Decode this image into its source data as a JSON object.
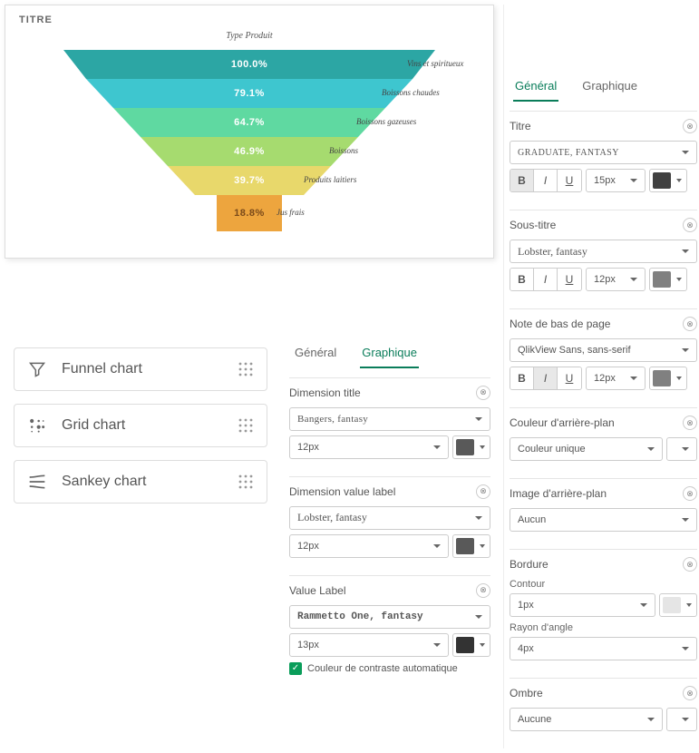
{
  "chart": {
    "title": "TITRE",
    "subtitle": "Type Produit",
    "segments": [
      {
        "value": "100.0%",
        "label": "Vins et spiritueux",
        "color": "#2ca6a4",
        "tw": 410,
        "bw": 360,
        "h": 32,
        "labelX": 428
      },
      {
        "value": "79.1%",
        "label": "Boissons chaudes",
        "color": "#3ec6cf",
        "tw": 360,
        "bw": 300,
        "h": 32,
        "labelX": 400
      },
      {
        "value": "64.7%",
        "label": "Boissons gazeuses",
        "color": "#5fd9a1",
        "tw": 300,
        "bw": 240,
        "h": 32,
        "labelX": 372
      },
      {
        "value": "46.9%",
        "label": "Boissons",
        "color": "#a6db6f",
        "tw": 240,
        "bw": 180,
        "h": 32,
        "labelX": 342
      },
      {
        "value": "39.7%",
        "label": "Produits laitiers",
        "color": "#e8d86b",
        "tw": 180,
        "bw": 120,
        "h": 32,
        "labelX": 314
      },
      {
        "value": "18.8%",
        "label": "Jus frais",
        "color": "#eda53e",
        "tw": 72,
        "bw": 72,
        "h": 40,
        "labelX": 284,
        "valColor": "#7a4a1a"
      }
    ]
  },
  "chartTypes": [
    {
      "label": "Funnel chart",
      "icon": "funnel"
    },
    {
      "label": "Grid chart",
      "icon": "grid"
    },
    {
      "label": "Sankey chart",
      "icon": "sankey"
    }
  ],
  "midPanel": {
    "tabs": {
      "general": "Général",
      "graphique": "Graphique"
    },
    "dimTitle": {
      "label": "Dimension title",
      "font": "Bangers, fantasy",
      "size": "12px",
      "color": "#595959"
    },
    "dimValue": {
      "label": "Dimension value label",
      "font": "Lobster, fantasy",
      "size": "12px",
      "color": "#595959"
    },
    "valueLabel": {
      "label": "Value Label",
      "font": "Rammetto One, fantasy",
      "size": "13px",
      "color": "#333333"
    },
    "contrast": "Couleur de contraste automatique"
  },
  "rightPanel": {
    "tabs": {
      "general": "Général",
      "graphique": "Graphique"
    },
    "titre": {
      "label": "Titre",
      "font": "Graduate, fantasy",
      "size": "15px",
      "color": "#404040",
      "bold": true,
      "italic": false,
      "underline": false
    },
    "sousTitre": {
      "label": "Sous-titre",
      "font": "Lobster, fantasy",
      "size": "12px",
      "color": "#808080",
      "bold": false,
      "italic": false,
      "underline": false
    },
    "footnote": {
      "label": "Note de bas de page",
      "font": "QlikView Sans, sans-serif",
      "size": "12px",
      "color": "#808080",
      "bold": false,
      "italic": true,
      "underline": false
    },
    "bgColor": {
      "label": "Couleur d'arrière-plan",
      "value": "Couleur unique"
    },
    "bgImage": {
      "label": "Image d'arrière-plan",
      "value": "Aucun"
    },
    "border": {
      "label": "Bordure",
      "contour": "Contour",
      "contourVal": "1px",
      "contourColor": "#e5e5e5",
      "radius": "Rayon d'angle",
      "radiusVal": "4px"
    },
    "shadow": {
      "label": "Ombre",
      "value": "Aucune"
    }
  }
}
